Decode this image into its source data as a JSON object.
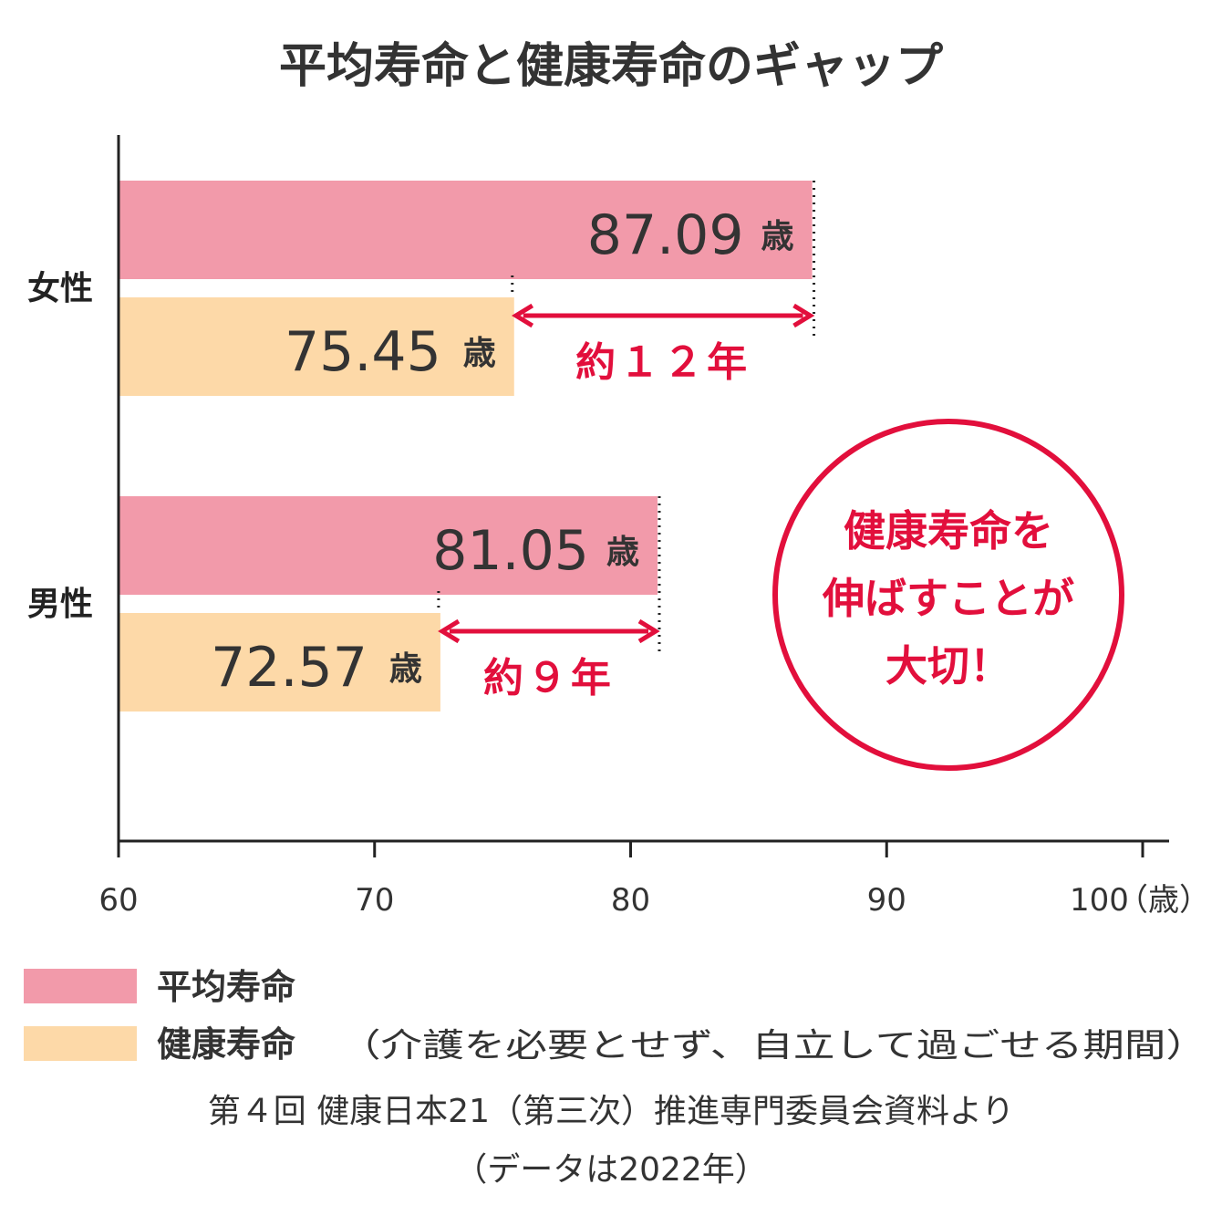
{
  "chart_data": {
    "type": "bar",
    "orientation": "horizontal",
    "title": "平均寿命と健康寿命のギャップ",
    "categories": [
      "女性",
      "男性"
    ],
    "series": [
      {
        "name": "平均寿命",
        "color": "#f29aaa",
        "values": [
          87.09,
          81.05
        ],
        "labels": [
          "87.09",
          "81.05"
        ]
      },
      {
        "name": "健康寿命",
        "color": "#fdd9a8",
        "values": [
          75.45,
          72.57
        ],
        "labels": [
          "75.45",
          "72.57"
        ]
      }
    ],
    "value_unit": "歳",
    "xlim": [
      60,
      100
    ],
    "x_ticks": [
      "60",
      "70",
      "80",
      "90",
      "100"
    ],
    "x_unit_label": "（歳）",
    "gaps": [
      "約１２年",
      "約９年"
    ],
    "legend": [
      {
        "label": "平均寿命",
        "note": ""
      },
      {
        "label": "健康寿命",
        "note": "（介護を必要とせず、自立して過ごせる期間）"
      }
    ],
    "legend_placement": "bottom-left",
    "grid": false,
    "accent_color": "#e20f3c"
  },
  "callout": {
    "lines": [
      "健康寿命を",
      "伸ばすことが",
      "大切！"
    ]
  },
  "source": {
    "lines": [
      "第４回 健康日本21（第三次）推進専門委員会資料より",
      "（データは2022年）"
    ]
  }
}
